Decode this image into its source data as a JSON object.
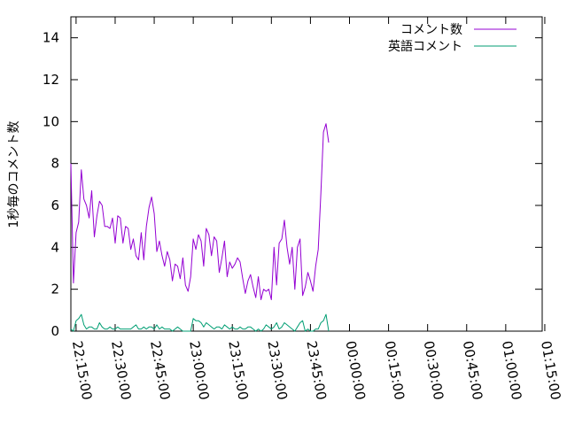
{
  "chart_data": {
    "type": "line",
    "title": "",
    "xlabel": "",
    "ylabel": "1秒毎のコメント数",
    "xlim": [
      "22:13:00",
      "01:14:00"
    ],
    "ylim": [
      0,
      15
    ],
    "yticks": [
      0,
      2,
      4,
      6,
      8,
      10,
      12,
      14
    ],
    "xticks": [
      "22:15:00",
      "22:30:00",
      "22:45:00",
      "23:00:00",
      "23:15:00",
      "23:30:00",
      "23:45:00",
      "00:00:00",
      "00:15:00",
      "00:30:00",
      "00:45:00",
      "01:00:00",
      "01:15:00"
    ],
    "grid": false,
    "legend_position": "top-right",
    "x_step": "1 minute",
    "x_start": "22:13:00",
    "series": [
      {
        "name": "コメント数",
        "color": "#9400d3",
        "values": [
          8.0,
          2.3,
          4.7,
          5.2,
          7.7,
          6.3,
          6.0,
          5.4,
          6.7,
          4.5,
          5.5,
          6.2,
          6.0,
          5.0,
          5.0,
          4.9,
          5.4,
          4.2,
          5.5,
          5.4,
          4.2,
          5.0,
          4.9,
          3.9,
          4.4,
          3.6,
          3.4,
          4.7,
          3.4,
          5.0,
          5.9,
          6.4,
          5.6,
          3.8,
          4.3,
          3.6,
          3.1,
          3.8,
          3.4,
          2.4,
          3.2,
          3.1,
          2.5,
          3.5,
          2.2,
          1.9,
          2.6,
          4.4,
          3.9,
          4.6,
          4.3,
          3.1,
          4.9,
          4.6,
          3.6,
          4.5,
          4.3,
          2.8,
          3.5,
          4.3,
          2.6,
          3.3,
          3.0,
          3.2,
          3.5,
          3.3,
          2.5,
          1.8,
          2.4,
          2.7,
          2.1,
          1.6,
          2.6,
          1.5,
          2.0,
          1.9,
          2.0,
          1.5,
          4.0,
          2.2,
          4.2,
          4.4,
          5.3,
          4.0,
          3.2,
          4.0,
          2.0,
          4.0,
          4.4,
          1.7,
          2.1,
          2.8,
          2.4,
          1.9,
          3.1,
          3.9,
          6.6,
          9.5,
          9.9,
          9.0
        ]
      },
      {
        "name": "英語コメント",
        "color": "#009e73",
        "values": [
          0.1,
          0.0,
          0.5,
          0.6,
          0.8,
          0.3,
          0.1,
          0.2,
          0.2,
          0.1,
          0.1,
          0.4,
          0.2,
          0.1,
          0.1,
          0.2,
          0.1,
          0.1,
          0.2,
          0.1,
          0.1,
          0.1,
          0.1,
          0.1,
          0.2,
          0.3,
          0.1,
          0.1,
          0.2,
          0.1,
          0.2,
          0.2,
          0.1,
          0.3,
          0.1,
          0.2,
          0.1,
          0.1,
          0.1,
          0.0,
          0.1,
          0.2,
          0.1,
          0.0,
          0.0,
          0.0,
          0.0,
          0.6,
          0.5,
          0.5,
          0.4,
          0.2,
          0.4,
          0.3,
          0.2,
          0.1,
          0.2,
          0.2,
          0.1,
          0.3,
          0.2,
          0.1,
          0.2,
          0.1,
          0.1,
          0.2,
          0.1,
          0.1,
          0.2,
          0.2,
          0.1,
          0.0,
          0.1,
          0.0,
          0.1,
          0.3,
          0.2,
          0.1,
          0.2,
          0.4,
          0.1,
          0.2,
          0.4,
          0.3,
          0.2,
          0.1,
          0.0,
          0.2,
          0.4,
          0.5,
          0.0,
          0.1,
          0.0,
          0.0,
          0.1,
          0.1,
          0.4,
          0.5,
          0.8,
          0.0
        ]
      }
    ]
  }
}
